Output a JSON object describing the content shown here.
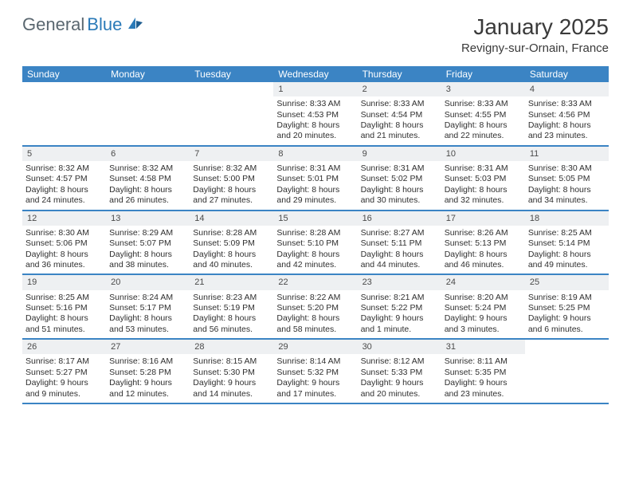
{
  "logo": {
    "part1": "General",
    "part2": "Blue"
  },
  "title": "January 2025",
  "location": "Revigny-sur-Ornain, France",
  "colors": {
    "header_bg": "#3b84c4",
    "daynum_bg": "#eef0f2",
    "border": "#3b84c4",
    "text": "#2f2f2f"
  },
  "dow": [
    "Sunday",
    "Monday",
    "Tuesday",
    "Wednesday",
    "Thursday",
    "Friday",
    "Saturday"
  ],
  "weeks": [
    [
      {
        "n": "",
        "sr": "",
        "ss": "",
        "dl1": "",
        "dl2": ""
      },
      {
        "n": "",
        "sr": "",
        "ss": "",
        "dl1": "",
        "dl2": ""
      },
      {
        "n": "",
        "sr": "",
        "ss": "",
        "dl1": "",
        "dl2": ""
      },
      {
        "n": "1",
        "sr": "Sunrise: 8:33 AM",
        "ss": "Sunset: 4:53 PM",
        "dl1": "Daylight: 8 hours",
        "dl2": "and 20 minutes."
      },
      {
        "n": "2",
        "sr": "Sunrise: 8:33 AM",
        "ss": "Sunset: 4:54 PM",
        "dl1": "Daylight: 8 hours",
        "dl2": "and 21 minutes."
      },
      {
        "n": "3",
        "sr": "Sunrise: 8:33 AM",
        "ss": "Sunset: 4:55 PM",
        "dl1": "Daylight: 8 hours",
        "dl2": "and 22 minutes."
      },
      {
        "n": "4",
        "sr": "Sunrise: 8:33 AM",
        "ss": "Sunset: 4:56 PM",
        "dl1": "Daylight: 8 hours",
        "dl2": "and 23 minutes."
      }
    ],
    [
      {
        "n": "5",
        "sr": "Sunrise: 8:32 AM",
        "ss": "Sunset: 4:57 PM",
        "dl1": "Daylight: 8 hours",
        "dl2": "and 24 minutes."
      },
      {
        "n": "6",
        "sr": "Sunrise: 8:32 AM",
        "ss": "Sunset: 4:58 PM",
        "dl1": "Daylight: 8 hours",
        "dl2": "and 26 minutes."
      },
      {
        "n": "7",
        "sr": "Sunrise: 8:32 AM",
        "ss": "Sunset: 5:00 PM",
        "dl1": "Daylight: 8 hours",
        "dl2": "and 27 minutes."
      },
      {
        "n": "8",
        "sr": "Sunrise: 8:31 AM",
        "ss": "Sunset: 5:01 PM",
        "dl1": "Daylight: 8 hours",
        "dl2": "and 29 minutes."
      },
      {
        "n": "9",
        "sr": "Sunrise: 8:31 AM",
        "ss": "Sunset: 5:02 PM",
        "dl1": "Daylight: 8 hours",
        "dl2": "and 30 minutes."
      },
      {
        "n": "10",
        "sr": "Sunrise: 8:31 AM",
        "ss": "Sunset: 5:03 PM",
        "dl1": "Daylight: 8 hours",
        "dl2": "and 32 minutes."
      },
      {
        "n": "11",
        "sr": "Sunrise: 8:30 AM",
        "ss": "Sunset: 5:05 PM",
        "dl1": "Daylight: 8 hours",
        "dl2": "and 34 minutes."
      }
    ],
    [
      {
        "n": "12",
        "sr": "Sunrise: 8:30 AM",
        "ss": "Sunset: 5:06 PM",
        "dl1": "Daylight: 8 hours",
        "dl2": "and 36 minutes."
      },
      {
        "n": "13",
        "sr": "Sunrise: 8:29 AM",
        "ss": "Sunset: 5:07 PM",
        "dl1": "Daylight: 8 hours",
        "dl2": "and 38 minutes."
      },
      {
        "n": "14",
        "sr": "Sunrise: 8:28 AM",
        "ss": "Sunset: 5:09 PM",
        "dl1": "Daylight: 8 hours",
        "dl2": "and 40 minutes."
      },
      {
        "n": "15",
        "sr": "Sunrise: 8:28 AM",
        "ss": "Sunset: 5:10 PM",
        "dl1": "Daylight: 8 hours",
        "dl2": "and 42 minutes."
      },
      {
        "n": "16",
        "sr": "Sunrise: 8:27 AM",
        "ss": "Sunset: 5:11 PM",
        "dl1": "Daylight: 8 hours",
        "dl2": "and 44 minutes."
      },
      {
        "n": "17",
        "sr": "Sunrise: 8:26 AM",
        "ss": "Sunset: 5:13 PM",
        "dl1": "Daylight: 8 hours",
        "dl2": "and 46 minutes."
      },
      {
        "n": "18",
        "sr": "Sunrise: 8:25 AM",
        "ss": "Sunset: 5:14 PM",
        "dl1": "Daylight: 8 hours",
        "dl2": "and 49 minutes."
      }
    ],
    [
      {
        "n": "19",
        "sr": "Sunrise: 8:25 AM",
        "ss": "Sunset: 5:16 PM",
        "dl1": "Daylight: 8 hours",
        "dl2": "and 51 minutes."
      },
      {
        "n": "20",
        "sr": "Sunrise: 8:24 AM",
        "ss": "Sunset: 5:17 PM",
        "dl1": "Daylight: 8 hours",
        "dl2": "and 53 minutes."
      },
      {
        "n": "21",
        "sr": "Sunrise: 8:23 AM",
        "ss": "Sunset: 5:19 PM",
        "dl1": "Daylight: 8 hours",
        "dl2": "and 56 minutes."
      },
      {
        "n": "22",
        "sr": "Sunrise: 8:22 AM",
        "ss": "Sunset: 5:20 PM",
        "dl1": "Daylight: 8 hours",
        "dl2": "and 58 minutes."
      },
      {
        "n": "23",
        "sr": "Sunrise: 8:21 AM",
        "ss": "Sunset: 5:22 PM",
        "dl1": "Daylight: 9 hours",
        "dl2": "and 1 minute."
      },
      {
        "n": "24",
        "sr": "Sunrise: 8:20 AM",
        "ss": "Sunset: 5:24 PM",
        "dl1": "Daylight: 9 hours",
        "dl2": "and 3 minutes."
      },
      {
        "n": "25",
        "sr": "Sunrise: 8:19 AM",
        "ss": "Sunset: 5:25 PM",
        "dl1": "Daylight: 9 hours",
        "dl2": "and 6 minutes."
      }
    ],
    [
      {
        "n": "26",
        "sr": "Sunrise: 8:17 AM",
        "ss": "Sunset: 5:27 PM",
        "dl1": "Daylight: 9 hours",
        "dl2": "and 9 minutes."
      },
      {
        "n": "27",
        "sr": "Sunrise: 8:16 AM",
        "ss": "Sunset: 5:28 PM",
        "dl1": "Daylight: 9 hours",
        "dl2": "and 12 minutes."
      },
      {
        "n": "28",
        "sr": "Sunrise: 8:15 AM",
        "ss": "Sunset: 5:30 PM",
        "dl1": "Daylight: 9 hours",
        "dl2": "and 14 minutes."
      },
      {
        "n": "29",
        "sr": "Sunrise: 8:14 AM",
        "ss": "Sunset: 5:32 PM",
        "dl1": "Daylight: 9 hours",
        "dl2": "and 17 minutes."
      },
      {
        "n": "30",
        "sr": "Sunrise: 8:12 AM",
        "ss": "Sunset: 5:33 PM",
        "dl1": "Daylight: 9 hours",
        "dl2": "and 20 minutes."
      },
      {
        "n": "31",
        "sr": "Sunrise: 8:11 AM",
        "ss": "Sunset: 5:35 PM",
        "dl1": "Daylight: 9 hours",
        "dl2": "and 23 minutes."
      },
      {
        "n": "",
        "sr": "",
        "ss": "",
        "dl1": "",
        "dl2": ""
      }
    ]
  ]
}
